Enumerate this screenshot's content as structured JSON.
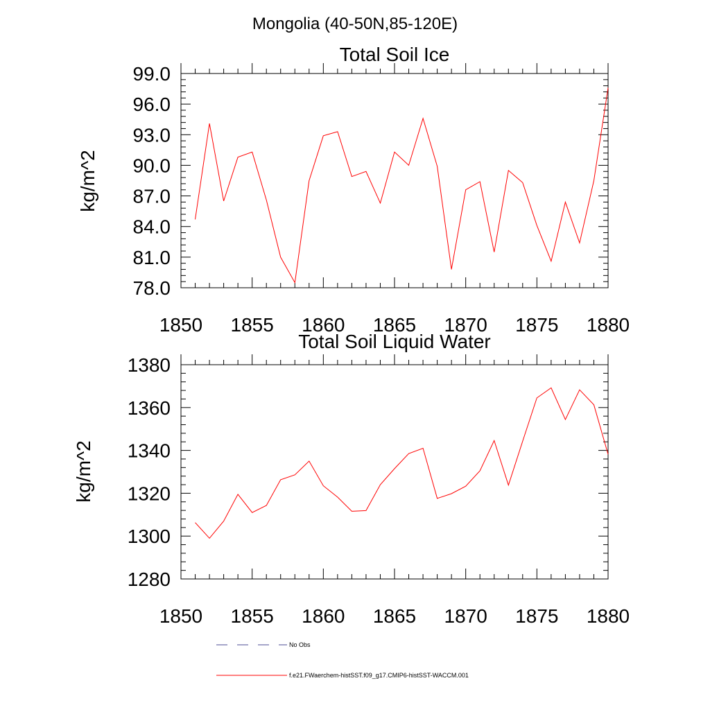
{
  "figure": {
    "title": "Mongolia (40-50N,85-120E)"
  },
  "chart_data": [
    {
      "type": "line",
      "title": "Total Soil Ice",
      "ylabel": "kg/m^2",
      "xlabel": "",
      "xlim": [
        1850,
        1880
      ],
      "ylim": [
        78,
        99
      ],
      "x_ticks": [
        "1850",
        "1855",
        "1860",
        "1865",
        "1870",
        "1875",
        "1880"
      ],
      "y_ticks": [
        "78.0",
        "81.0",
        "84.0",
        "87.0",
        "90.0",
        "93.0",
        "96.0",
        "99.0"
      ],
      "grid": false,
      "x": [
        1851,
        1852,
        1853,
        1854,
        1855,
        1856,
        1857,
        1858,
        1859,
        1860,
        1861,
        1862,
        1863,
        1864,
        1865,
        1866,
        1867,
        1868,
        1869,
        1870,
        1871,
        1872,
        1873,
        1874,
        1875,
        1876,
        1877,
        1878,
        1879,
        1880
      ],
      "series": [
        {
          "color": "#ff0000",
          "values": [
            84.7,
            94.1,
            86.5,
            90.8,
            91.3,
            86.6,
            81.0,
            78.5,
            88.5,
            92.9,
            93.3,
            88.9,
            89.4,
            86.3,
            91.3,
            90.0,
            94.6,
            89.9,
            79.8,
            87.6,
            88.4,
            81.5,
            89.5,
            88.3,
            84.1,
            80.6,
            86.4,
            82.4,
            88.5,
            97.6
          ]
        }
      ]
    },
    {
      "type": "line",
      "title": "Total Soil Liquid Water",
      "ylabel": "kg/m^2",
      "xlabel": "",
      "xlim": [
        1850,
        1880
      ],
      "ylim": [
        1280,
        1380
      ],
      "x_ticks": [
        "1850",
        "1855",
        "1860",
        "1865",
        "1870",
        "1875",
        "1880"
      ],
      "y_ticks": [
        "1280",
        "1300",
        "1320",
        "1340",
        "1360",
        "1380"
      ],
      "grid": false,
      "x": [
        1851,
        1852,
        1853,
        1854,
        1855,
        1856,
        1857,
        1858,
        1859,
        1860,
        1861,
        1862,
        1863,
        1864,
        1865,
        1866,
        1867,
        1868,
        1869,
        1870,
        1871,
        1872,
        1873,
        1874,
        1875,
        1876,
        1877,
        1878,
        1879,
        1880
      ],
      "series": [
        {
          "color": "#ff0000",
          "values": [
            1306.3,
            1299.0,
            1307.0,
            1319.5,
            1311.0,
            1314.3,
            1326.3,
            1328.6,
            1335.0,
            1323.5,
            1318.2,
            1311.6,
            1311.9,
            1324.0,
            1331.5,
            1338.5,
            1341.0,
            1317.6,
            1319.8,
            1323.3,
            1330.5,
            1344.6,
            1323.8,
            1344.3,
            1364.5,
            1369.2,
            1354.4,
            1368.3,
            1361.3,
            1338.2
          ]
        }
      ]
    }
  ],
  "legend": {
    "items": [
      {
        "label": "No Obs",
        "color": "#4b4b96",
        "dashed": true
      },
      {
        "label": "f.e21.FWaerchem-histSST.f09_g17.CMIP6-histSST-WACCM.001",
        "color": "#ff0000",
        "dashed": false
      }
    ]
  }
}
